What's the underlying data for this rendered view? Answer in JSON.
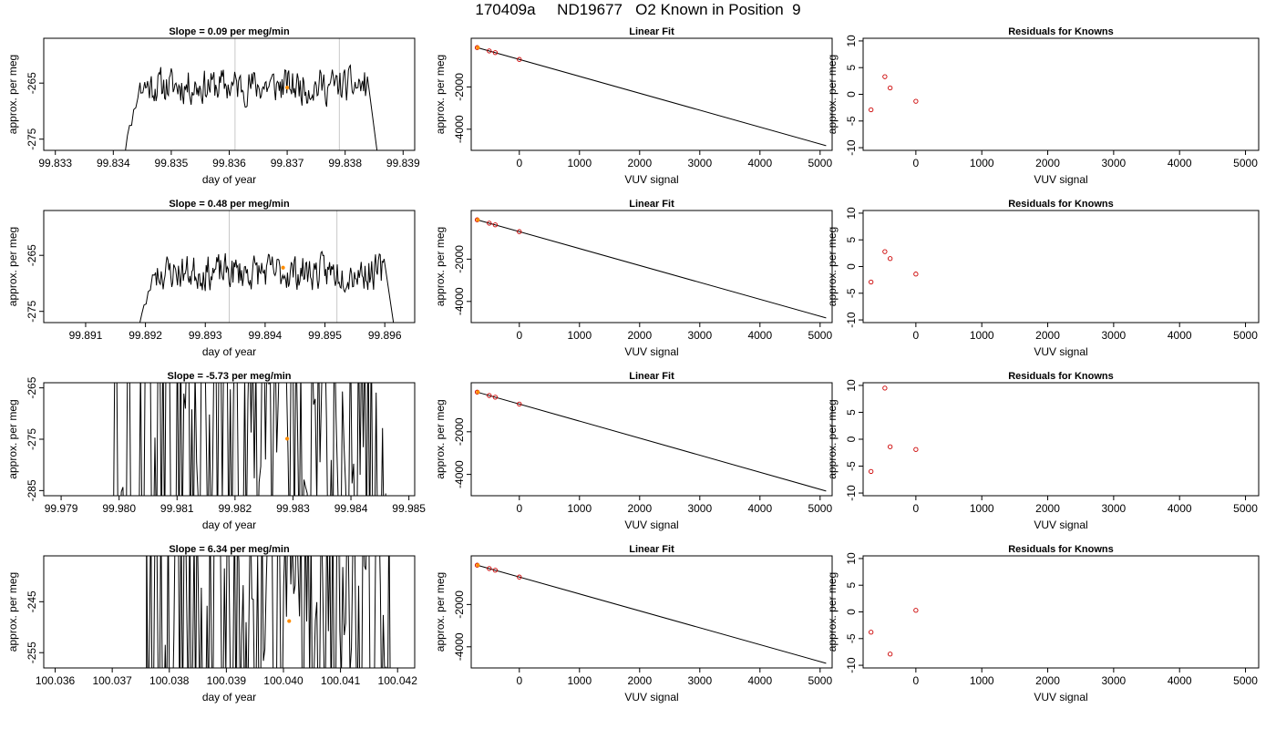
{
  "page": {
    "title": "170409a     ND19677   O2 Known in Position  9"
  },
  "colors": {
    "trace": "#000000",
    "marker_highlight": "#ff8c00",
    "residual_points": "#cc0000",
    "fit_points": "#cc0000",
    "vline": "#c8c8c8"
  },
  "chart_data": [
    {
      "type": "line",
      "panel": "timeseries",
      "row": 0,
      "title": "Slope =  0.09  per meg/min",
      "xlabel": "day of year",
      "ylabel": "approx. per meg",
      "xlim": [
        99.8328,
        99.8392
      ],
      "ylim": [
        -277,
        -257
      ],
      "xticks": [
        99.833,
        99.834,
        99.835,
        99.836,
        99.837,
        99.838,
        99.839
      ],
      "xtick_labels": [
        "99.833",
        "99.834",
        "99.835",
        "99.836",
        "99.837",
        "99.838",
        "99.839"
      ],
      "yticks": [
        -275,
        -265
      ],
      "ytick_labels": [
        "-275",
        "-265"
      ],
      "vlines": [
        99.8361,
        99.8379
      ],
      "highlight_point": {
        "x": 99.837,
        "y": -265.8
      },
      "trace": {
        "start": 99.8341,
        "end": 99.8386,
        "mean": -265.5,
        "amplitude": 2.8,
        "wild": false,
        "seed": 11
      }
    },
    {
      "type": "line",
      "panel": "fit",
      "row": 0,
      "title": "Linear Fit",
      "xlabel": "VUV signal",
      "ylabel": "approx. per meg",
      "xlim": [
        -800,
        5200
      ],
      "ylim": [
        -5000,
        300
      ],
      "xticks": [
        0,
        1000,
        2000,
        3000,
        4000,
        5000
      ],
      "xtick_labels": [
        "0",
        "1000",
        "2000",
        "3000",
        "4000",
        "5000"
      ],
      "yticks": [
        -4000,
        -2000
      ],
      "ytick_labels": [
        "-4000",
        "-2000"
      ],
      "line": {
        "x": [
          -700,
          5100
        ],
        "y": [
          -140,
          -4780
        ]
      },
      "points": [
        {
          "x": -700,
          "y": -140
        },
        {
          "x": -500,
          "y": -300
        },
        {
          "x": -400,
          "y": -380
        },
        {
          "x": 0,
          "y": -700
        }
      ],
      "highlight_point": {
        "x": -690,
        "y": -140
      }
    },
    {
      "type": "scatter",
      "panel": "residuals",
      "row": 0,
      "title": "Residuals for Knowns",
      "xlabel": "VUV signal",
      "ylabel": "approx. per meg",
      "xlim": [
        -800,
        5200
      ],
      "ylim": [
        -10.5,
        10.5
      ],
      "xticks": [
        0,
        1000,
        2000,
        3000,
        4000,
        5000
      ],
      "xtick_labels": [
        "0",
        "1000",
        "2000",
        "3000",
        "4000",
        "5000"
      ],
      "yticks": [
        -10,
        -5,
        0,
        5,
        10
      ],
      "ytick_labels": [
        "-10",
        "-5",
        "0",
        "5",
        "10"
      ],
      "points": [
        {
          "x": -680,
          "y": -2.9
        },
        {
          "x": -470,
          "y": 3.3
        },
        {
          "x": -390,
          "y": 1.2
        },
        {
          "x": 0,
          "y": -1.3
        }
      ]
    },
    {
      "type": "line",
      "panel": "timeseries",
      "row": 1,
      "title": "Slope =  0.48  per meg/min",
      "xlabel": "day of year",
      "ylabel": "approx. per meg",
      "xlim": [
        99.8903,
        99.8965
      ],
      "ylim": [
        -277,
        -257
      ],
      "xticks": [
        99.891,
        99.892,
        99.893,
        99.894,
        99.895,
        99.896
      ],
      "xtick_labels": [
        "99.891",
        "99.892",
        "99.893",
        "99.894",
        "99.895",
        "99.896"
      ],
      "yticks": [
        -275,
        -265
      ],
      "ytick_labels": [
        "-275",
        "-265"
      ],
      "vlines": [
        99.8934,
        99.8952
      ],
      "highlight_point": {
        "x": 99.8943,
        "y": -267.2
      },
      "trace": {
        "start": 99.8918,
        "end": 99.8962,
        "mean": -268,
        "amplitude": 2.8,
        "wild": false,
        "seed": 23
      }
    },
    {
      "type": "line",
      "panel": "fit",
      "row": 1,
      "title": "Linear Fit",
      "xlabel": "VUV signal",
      "ylabel": "approx. per meg",
      "xlim": [
        -800,
        5200
      ],
      "ylim": [
        -5000,
        300
      ],
      "xticks": [
        0,
        1000,
        2000,
        3000,
        4000,
        5000
      ],
      "xtick_labels": [
        "0",
        "1000",
        "2000",
        "3000",
        "4000",
        "5000"
      ],
      "yticks": [
        -4000,
        -2000
      ],
      "ytick_labels": [
        "-4000",
        "-2000"
      ],
      "line": {
        "x": [
          -700,
          5100
        ],
        "y": [
          -140,
          -4780
        ]
      },
      "points": [
        {
          "x": -700,
          "y": -140
        },
        {
          "x": -500,
          "y": -300
        },
        {
          "x": -400,
          "y": -380
        },
        {
          "x": 0,
          "y": -700
        }
      ],
      "highlight_point": {
        "x": -690,
        "y": -140
      }
    },
    {
      "type": "scatter",
      "panel": "residuals",
      "row": 1,
      "title": "Residuals for Knowns",
      "xlabel": "VUV signal",
      "ylabel": "approx. per meg",
      "xlim": [
        -800,
        5200
      ],
      "ylim": [
        -10.5,
        10.5
      ],
      "xticks": [
        0,
        1000,
        2000,
        3000,
        4000,
        5000
      ],
      "xtick_labels": [
        "0",
        "1000",
        "2000",
        "3000",
        "4000",
        "5000"
      ],
      "yticks": [
        -10,
        -5,
        0,
        5,
        10
      ],
      "ytick_labels": [
        "-10",
        "-5",
        "0",
        "5",
        "10"
      ],
      "points": [
        {
          "x": -680,
          "y": -2.9
        },
        {
          "x": -470,
          "y": 2.8
        },
        {
          "x": -390,
          "y": 1.5
        },
        {
          "x": 0,
          "y": -1.4
        }
      ]
    },
    {
      "type": "line",
      "panel": "timeseries",
      "row": 2,
      "title": "Slope =  -5.73  per meg/min",
      "xlabel": "day of year",
      "ylabel": "approx. per meg",
      "xlim": [
        99.9787,
        99.9851
      ],
      "ylim": [
        -286,
        -264
      ],
      "xticks": [
        99.979,
        99.98,
        99.981,
        99.982,
        99.983,
        99.984,
        99.985
      ],
      "xtick_labels": [
        "99.979",
        "99.980",
        "99.981",
        "99.982",
        "99.983",
        "99.984",
        "99.985"
      ],
      "yticks": [
        -285,
        -275,
        -265
      ],
      "ytick_labels": [
        "-285",
        "-275",
        "-265"
      ],
      "vlines": [
        99.982,
        99.9837
      ],
      "highlight_point": {
        "x": 99.9829,
        "y": -274.9
      },
      "trace": {
        "start": 99.9799,
        "end": 99.9846,
        "mean": -270,
        "amplitude": 18,
        "wild": true,
        "seed": 37
      }
    },
    {
      "type": "line",
      "panel": "fit",
      "row": 2,
      "title": "Linear Fit",
      "xlabel": "VUV signal",
      "ylabel": "approx. per meg",
      "xlim": [
        -800,
        5200
      ],
      "ylim": [
        -5000,
        300
      ],
      "xticks": [
        0,
        1000,
        2000,
        3000,
        4000,
        5000
      ],
      "xtick_labels": [
        "0",
        "1000",
        "2000",
        "3000",
        "4000",
        "5000"
      ],
      "yticks": [
        -4000,
        -2000
      ],
      "ytick_labels": [
        "-4000",
        "-2000"
      ],
      "line": {
        "x": [
          -700,
          5100
        ],
        "y": [
          -140,
          -4780
        ]
      },
      "points": [
        {
          "x": -700,
          "y": -140
        },
        {
          "x": -500,
          "y": -300
        },
        {
          "x": -400,
          "y": -380
        },
        {
          "x": 0,
          "y": -700
        }
      ],
      "highlight_point": {
        "x": -690,
        "y": -140
      }
    },
    {
      "type": "scatter",
      "panel": "residuals",
      "row": 2,
      "title": "Residuals for Knowns",
      "xlabel": "VUV signal",
      "ylabel": "approx. per meg",
      "xlim": [
        -800,
        5200
      ],
      "ylim": [
        -10.5,
        10.5
      ],
      "xticks": [
        0,
        1000,
        2000,
        3000,
        4000,
        5000
      ],
      "xtick_labels": [
        "0",
        "1000",
        "2000",
        "3000",
        "4000",
        "5000"
      ],
      "yticks": [
        -10,
        -5,
        0,
        5,
        10
      ],
      "ytick_labels": [
        "-10",
        "-5",
        "0",
        "5",
        "10"
      ],
      "points": [
        {
          "x": -680,
          "y": -6.0
        },
        {
          "x": -470,
          "y": 9.5
        },
        {
          "x": -390,
          "y": -1.4
        },
        {
          "x": 0,
          "y": -1.9
        }
      ]
    },
    {
      "type": "line",
      "panel": "timeseries",
      "row": 3,
      "title": "Slope =  6.34  per meg/min",
      "xlabel": "day of year",
      "ylabel": "approx. per meg",
      "xlim": [
        100.0358,
        100.0423
      ],
      "ylim": [
        -258,
        -236
      ],
      "xticks": [
        100.036,
        100.037,
        100.038,
        100.039,
        100.04,
        100.041,
        100.042
      ],
      "xtick_labels": [
        "100.036",
        "100.037",
        "100.038",
        "100.039",
        "100.040",
        "100.041",
        "100.042"
      ],
      "yticks": [
        -255,
        -245
      ],
      "ytick_labels": [
        "-255",
        "-245"
      ],
      "vlines": [
        100.0392,
        100.041
      ],
      "highlight_point": {
        "x": 100.0401,
        "y": -248.8
      },
      "trace": {
        "start": 100.0376,
        "end": 100.0419,
        "mean": -246,
        "amplitude": 16,
        "wild": true,
        "seed": 53
      }
    },
    {
      "type": "line",
      "panel": "fit",
      "row": 3,
      "title": "Linear Fit",
      "xlabel": "VUV signal",
      "ylabel": "approx. per meg",
      "xlim": [
        -800,
        5200
      ],
      "ylim": [
        -5000,
        300
      ],
      "xticks": [
        0,
        1000,
        2000,
        3000,
        4000,
        5000
      ],
      "xtick_labels": [
        "0",
        "1000",
        "2000",
        "3000",
        "4000",
        "5000"
      ],
      "yticks": [
        -4000,
        -2000
      ],
      "ytick_labels": [
        "-4000",
        "-2000"
      ],
      "line": {
        "x": [
          -700,
          5100
        ],
        "y": [
          -140,
          -4780
        ]
      },
      "points": [
        {
          "x": -700,
          "y": -140
        },
        {
          "x": -500,
          "y": -300
        },
        {
          "x": -400,
          "y": -380
        },
        {
          "x": 0,
          "y": -700
        }
      ],
      "highlight_point": {
        "x": -690,
        "y": -140
      }
    },
    {
      "type": "scatter",
      "panel": "residuals",
      "row": 3,
      "title": "Residuals for Knowns",
      "xlabel": "VUV signal",
      "ylabel": "approx. per meg",
      "xlim": [
        -800,
        5200
      ],
      "ylim": [
        -10.5,
        10.5
      ],
      "xticks": [
        0,
        1000,
        2000,
        3000,
        4000,
        5000
      ],
      "xtick_labels": [
        "0",
        "1000",
        "2000",
        "3000",
        "4000",
        "5000"
      ],
      "yticks": [
        -10,
        -5,
        0,
        5,
        10
      ],
      "ytick_labels": [
        "-10",
        "-5",
        "0",
        "5",
        "10"
      ],
      "points": [
        {
          "x": -680,
          "y": -3.8
        },
        {
          "x": -390,
          "y": -7.9
        },
        {
          "x": 0,
          "y": 0.3
        }
      ]
    }
  ]
}
